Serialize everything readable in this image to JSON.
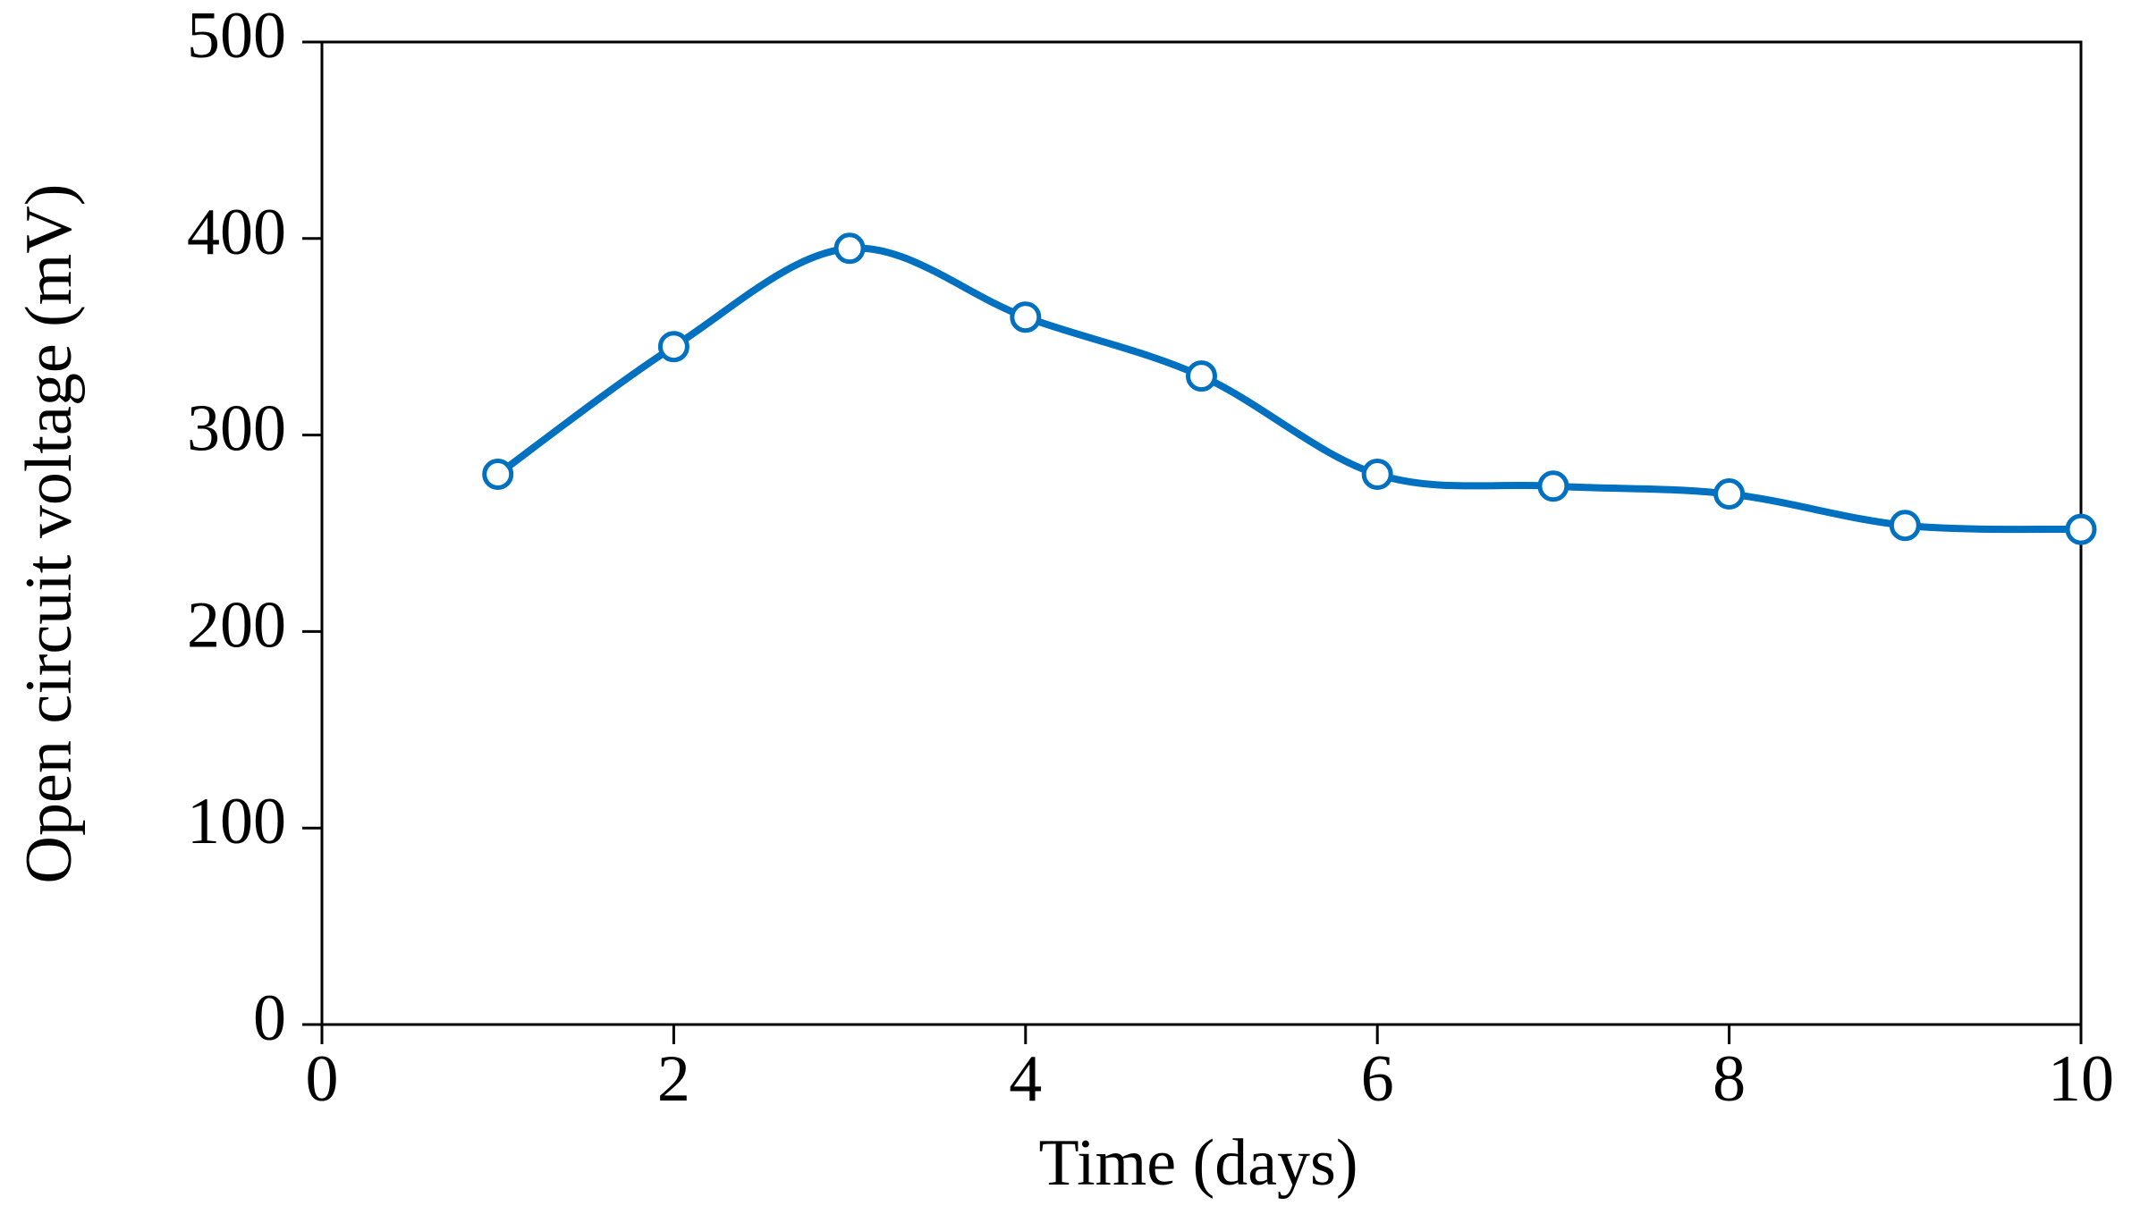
{
  "chart_data": {
    "type": "line",
    "x_label": "Time (days)",
    "y_label": "Open circuit voltage (mV)",
    "x": [
      1,
      2,
      3,
      4,
      5,
      6,
      7,
      8,
      9,
      10
    ],
    "series": [
      {
        "color": "#0070c0",
        "values": [
          280,
          345,
          395,
          360,
          330,
          280,
          274,
          270,
          254,
          252
        ]
      }
    ],
    "xlim": [
      0,
      10
    ],
    "xticks": [
      0,
      2,
      4,
      6,
      8,
      10
    ],
    "ylim": [
      0,
      500
    ],
    "yticks": [
      0,
      100,
      200,
      300,
      400,
      500
    ],
    "smooth": true,
    "markers": true
  }
}
